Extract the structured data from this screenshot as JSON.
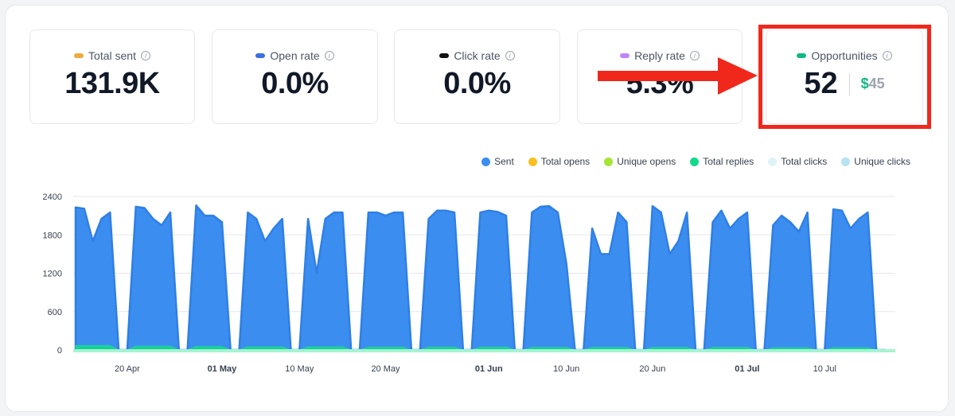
{
  "cards": [
    {
      "label": "Total sent",
      "value": "131.9K",
      "color": "#f0a93c"
    },
    {
      "label": "Open rate",
      "value": "0.0%",
      "color": "#3b6fe0"
    },
    {
      "label": "Click rate",
      "value": "0.0%",
      "color": "#111111"
    },
    {
      "label": "Reply rate",
      "value": "5.3%",
      "color": "#c084fc"
    }
  ],
  "opportunities": {
    "label": "Opportunities",
    "count": "52",
    "currency": "$",
    "amount": "45",
    "color": "#10b981"
  },
  "legend": [
    {
      "label": "Sent",
      "color": "#3b8ef0"
    },
    {
      "label": "Total opens",
      "color": "#fbbf24"
    },
    {
      "label": "Unique opens",
      "color": "#a3e635"
    },
    {
      "label": "Total replies",
      "color": "#10d98a"
    },
    {
      "label": "Total clicks",
      "color": "#dff3f7"
    },
    {
      "label": "Unique clicks",
      "color": "#b5e3f2"
    }
  ],
  "chart_data": {
    "type": "area",
    "y_ticks": [
      "2400",
      "1800",
      "1200",
      "600",
      "0"
    ],
    "ylim": [
      0,
      2400
    ],
    "x_ticks": [
      {
        "label": "20 Apr",
        "bold": false,
        "day": 6
      },
      {
        "label": "01 May",
        "bold": true,
        "day": 17
      },
      {
        "label": "10 May",
        "bold": false,
        "day": 26
      },
      {
        "label": "20 May",
        "bold": false,
        "day": 36
      },
      {
        "label": "01 Jun",
        "bold": true,
        "day": 48
      },
      {
        "label": "10 Jun",
        "bold": false,
        "day": 57
      },
      {
        "label": "20 Jun",
        "bold": false,
        "day": 67
      },
      {
        "label": "01 Jul",
        "bold": true,
        "day": 78
      },
      {
        "label": "10 Jul",
        "bold": false,
        "day": 87
      }
    ],
    "series": [
      {
        "name": "Sent",
        "values": [
          2230,
          2210,
          1700,
          2050,
          2150,
          0,
          0,
          2240,
          2220,
          2050,
          1950,
          2150,
          0,
          0,
          2260,
          2100,
          2100,
          2000,
          0,
          0,
          2150,
          2050,
          1700,
          1900,
          2050,
          0,
          0,
          2050,
          1200,
          2050,
          2150,
          2150,
          0,
          0,
          2150,
          2150,
          2100,
          2150,
          2150,
          0,
          0,
          2050,
          2180,
          2180,
          2150,
          0,
          0,
          2150,
          2180,
          2160,
          2100,
          0,
          0,
          2150,
          2240,
          2250,
          2150,
          1350,
          0,
          0,
          1900,
          1500,
          1500,
          2150,
          2000,
          0,
          0,
          2250,
          2150,
          1500,
          1700,
          2150,
          0,
          0,
          2000,
          2180,
          1900,
          2050,
          2150,
          0,
          0,
          1950,
          2100,
          2000,
          1850,
          2150,
          0,
          0,
          2200,
          2180,
          1900,
          2050,
          2150,
          0,
          0
        ]
      },
      {
        "name": "Total replies",
        "values": [
          70,
          70,
          70,
          70,
          70,
          0,
          0,
          60,
          60,
          60,
          60,
          60,
          0,
          0,
          55,
          55,
          55,
          55,
          0,
          0,
          50,
          50,
          50,
          50,
          50,
          0,
          0,
          50,
          50,
          50,
          50,
          50,
          0,
          0,
          45,
          45,
          45,
          45,
          45,
          0,
          0,
          45,
          45,
          45,
          45,
          0,
          0,
          45,
          45,
          45,
          45,
          0,
          0,
          40,
          40,
          40,
          40,
          40,
          0,
          0,
          40,
          40,
          40,
          40,
          40,
          0,
          0,
          40,
          40,
          40,
          40,
          40,
          0,
          0,
          40,
          40,
          40,
          40,
          40,
          0,
          0,
          35,
          35,
          35,
          35,
          35,
          0,
          0,
          35,
          35,
          35,
          35,
          35,
          0,
          0
        ]
      }
    ]
  }
}
